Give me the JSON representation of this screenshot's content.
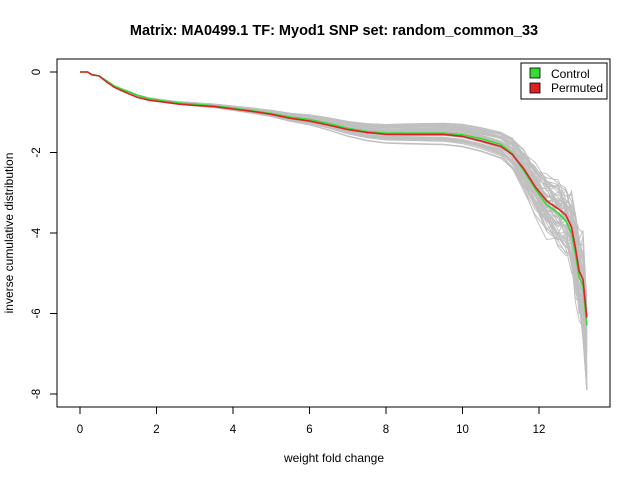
{
  "chart_data": {
    "type": "line",
    "title": "Matrix: MA0499.1 TF: Myod1 SNP set: random_common_33",
    "xlabel": "weight fold change",
    "ylabel": "inverse cumulative distribution",
    "xlim": [
      0,
      13.3
    ],
    "ylim": [
      -8,
      0
    ],
    "x_ticks": [
      "0",
      "2",
      "4",
      "6",
      "8",
      "10",
      "12"
    ],
    "y_ticks": [
      "0",
      "-2",
      "-4",
      "-6",
      "-8"
    ],
    "legend": {
      "position": "top-right",
      "entries": [
        "Control",
        "Permuted"
      ]
    },
    "colors": {
      "control": "#33dd33",
      "permuted": "#dd2222",
      "background_lines": "#c0c0c0"
    },
    "series": [
      {
        "name": "Permuted",
        "x": [
          0,
          0.2,
          0.3,
          0.5,
          0.7,
          0.9,
          1.1,
          1.3,
          1.5,
          1.8,
          2.2,
          2.6,
          3.0,
          3.5,
          4.0,
          4.5,
          5.0,
          5.5,
          6.0,
          6.5,
          7.0,
          7.5,
          8.0,
          8.5,
          9.0,
          9.5,
          10.0,
          10.5,
          11.0,
          11.3,
          11.6,
          11.9,
          12.2,
          12.5,
          12.7,
          12.85,
          12.95,
          13.05,
          13.15,
          13.25
        ],
        "y": [
          0,
          0,
          -0.07,
          -0.1,
          -0.25,
          -0.38,
          -0.47,
          -0.55,
          -0.63,
          -0.7,
          -0.75,
          -0.8,
          -0.83,
          -0.86,
          -0.92,
          -0.98,
          -1.05,
          -1.15,
          -1.22,
          -1.32,
          -1.43,
          -1.5,
          -1.55,
          -1.55,
          -1.55,
          -1.55,
          -1.6,
          -1.72,
          -1.85,
          -2.05,
          -2.4,
          -2.85,
          -3.2,
          -3.4,
          -3.55,
          -3.85,
          -4.35,
          -4.95,
          -5.15,
          -6.1
        ]
      },
      {
        "name": "Control",
        "x": [
          0,
          0.2,
          0.3,
          0.5,
          0.7,
          0.9,
          1.1,
          1.3,
          1.5,
          1.8,
          2.2,
          2.6,
          3.0,
          3.5,
          4.0,
          4.5,
          5.0,
          5.5,
          6.0,
          6.5,
          7.0,
          7.5,
          8.0,
          8.5,
          9.0,
          9.5,
          10.0,
          10.5,
          11.0,
          11.3,
          11.6,
          11.9,
          12.2,
          12.5,
          12.7,
          12.85,
          12.95,
          13.05,
          13.15,
          13.25
        ],
        "y": [
          0,
          0,
          -0.06,
          -0.1,
          -0.22,
          -0.35,
          -0.43,
          -0.5,
          -0.58,
          -0.66,
          -0.72,
          -0.77,
          -0.8,
          -0.84,
          -0.9,
          -0.96,
          -1.03,
          -1.12,
          -1.18,
          -1.28,
          -1.4,
          -1.48,
          -1.52,
          -1.52,
          -1.52,
          -1.52,
          -1.56,
          -1.66,
          -1.8,
          -2.02,
          -2.45,
          -2.9,
          -3.3,
          -3.5,
          -3.7,
          -4.0,
          -4.5,
          -5.1,
          -5.3,
          -6.3
        ]
      }
    ]
  }
}
